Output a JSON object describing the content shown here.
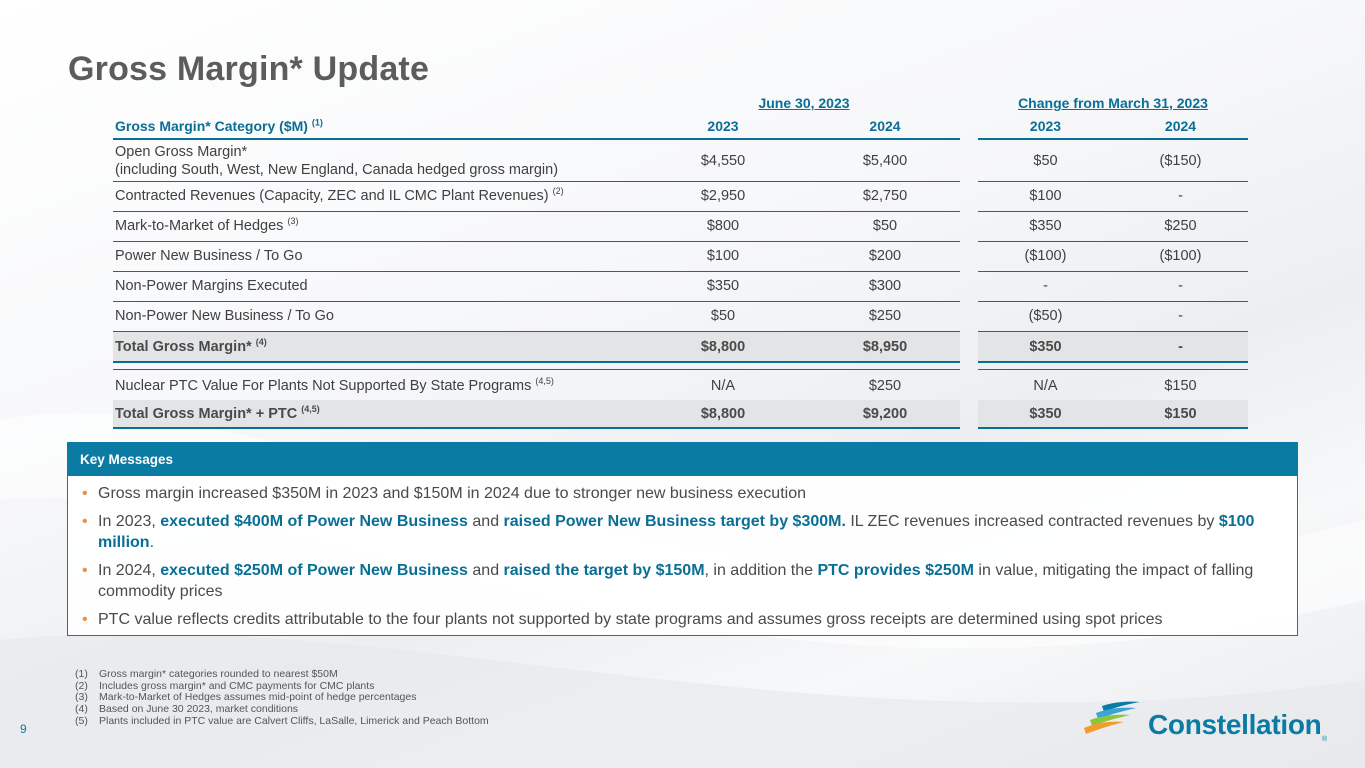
{
  "title": "Gross Margin* Update",
  "group_headers": {
    "june": "June 30, 2023",
    "change": "Change from March 31, 2023"
  },
  "column_headers": {
    "category": "Gross Margin* Category ($M)",
    "category_sup": "(1)",
    "june_2023": "2023",
    "june_2024": "2024",
    "change_2023": "2023",
    "change_2024": "2024"
  },
  "rows": [
    {
      "label": "Open Gross Margin*",
      "label2": "(including South, West, New England, Canada hedged gross margin)",
      "sup": "",
      "v": [
        "$4,550",
        "$5,400",
        "$50",
        "($150)"
      ]
    },
    {
      "label": "Contracted Revenues (Capacity, ZEC and IL CMC Plant Revenues)",
      "sup": "(2)",
      "v": [
        "$2,950",
        "$2,750",
        "$100",
        "-"
      ]
    },
    {
      "label": "Mark-to-Market of Hedges",
      "sup": "(3)",
      "v": [
        "$800",
        "$50",
        "$350",
        "$250"
      ]
    },
    {
      "label": "Power New Business / To Go",
      "sup": "",
      "v": [
        "$100",
        "$200",
        "($100)",
        "($100)"
      ]
    },
    {
      "label": "Non-Power Margins Executed",
      "sup": "",
      "v": [
        "$350",
        "$300",
        "-",
        "-"
      ]
    },
    {
      "label": "Non-Power New Business / To Go",
      "sup": "",
      "v": [
        "$50",
        "$250",
        "($50)",
        "-"
      ]
    },
    {
      "label": "Total Gross Margin*",
      "sup": "(4)",
      "v": [
        "$8,800",
        "$8,950",
        "$350",
        "-"
      ]
    },
    {
      "label": "Nuclear PTC Value For Plants Not Supported By State Programs",
      "sup": "(4,5)",
      "v": [
        "N/A",
        "$250",
        "N/A",
        "$150"
      ]
    },
    {
      "label": "Total Gross Margin* + PTC",
      "sup": "(4,5)",
      "v": [
        "$8,800",
        "$9,200",
        "$350",
        "$150"
      ]
    }
  ],
  "key_messages": {
    "header": "Key Messages",
    "b1": "Gross margin increased $350M in 2023 and $150M in 2024 due to stronger new business execution",
    "b2": {
      "t1": "In 2023, ",
      "h1": "executed $400M of Power New Business",
      "t2": " and ",
      "h2": "raised Power New Business target by $300M.",
      "t3": " IL ZEC revenues increased contracted revenues by ",
      "h3": "$100 million",
      "t4": "."
    },
    "b3": {
      "t1": "In 2024, ",
      "h1": "executed $250M of Power New Business",
      "t2": " and ",
      "h2": "raised the target by $150M",
      "t3": ", in addition the ",
      "h3": "PTC provides $250M",
      "t4": " in value, mitigating the impact of falling commodity prices"
    },
    "b4": "PTC value reflects credits attributable to the four plants not supported by state programs and assumes gross receipts are determined using spot prices"
  },
  "footnotes": [
    {
      "n": "(1)",
      "t": "Gross margin* categories rounded to nearest $50M"
    },
    {
      "n": "(2)",
      "t": "Includes gross margin* and CMC payments for CMC plants"
    },
    {
      "n": "(3)",
      "t": "Mark-to-Market of Hedges assumes mid-point of hedge percentages"
    },
    {
      "n": "(4)",
      "t": "Based on June 30 2023, market conditions"
    },
    {
      "n": "(5)",
      "t": "Plants included in PTC value are Calvert Cliffs, LaSalle, Limerick and Peach Bottom"
    }
  ],
  "page_number": "9",
  "logo": {
    "text": "Constellation",
    "reg": "®"
  },
  "colors": {
    "accent": "#0a7ba3",
    "heading_blue": "#0a6f95",
    "bullet_orange": "#f08c3c",
    "title_gray": "#5c5c5c"
  }
}
